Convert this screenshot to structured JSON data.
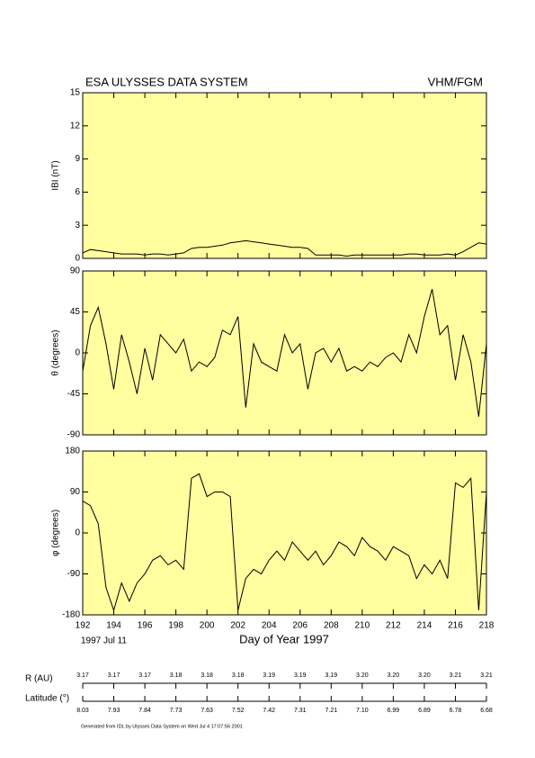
{
  "header": {
    "title": "ESA ULYSSES DATA SYSTEM",
    "instrument": "VHM/FGM"
  },
  "xlabel": "Day of Year 1997",
  "start_date": "1997 Jul 11",
  "chart_data": [
    {
      "type": "line",
      "ylabel": "IBI (nT)",
      "color": "#000000",
      "background": "#ffffa0",
      "xlim": [
        192,
        218
      ],
      "xticks": [
        192,
        194,
        196,
        198,
        200,
        202,
        204,
        206,
        208,
        210,
        212,
        214,
        216,
        218
      ],
      "ylim": [
        0,
        15
      ],
      "yticks": [
        0,
        3,
        6,
        9,
        12,
        15
      ],
      "x": [
        192,
        192.5,
        193,
        193.5,
        194,
        194.5,
        195,
        195.5,
        196,
        196.5,
        197,
        197.5,
        198,
        198.5,
        199,
        199.5,
        200,
        200.5,
        201,
        201.5,
        202,
        202.5,
        203,
        203.5,
        204,
        204.5,
        205,
        205.5,
        206,
        206.5,
        207,
        207.5,
        208,
        208.5,
        209,
        209.5,
        210,
        210.5,
        211,
        211.5,
        212,
        212.5,
        213,
        213.5,
        214,
        214.5,
        215,
        215.5,
        216,
        216.5,
        217,
        217.5,
        218
      ],
      "values": [
        0.5,
        0.8,
        0.7,
        0.6,
        0.5,
        0.4,
        0.4,
        0.4,
        0.3,
        0.4,
        0.4,
        0.3,
        0.4,
        0.5,
        0.9,
        1.0,
        1.0,
        1.1,
        1.2,
        1.4,
        1.5,
        1.6,
        1.5,
        1.4,
        1.3,
        1.2,
        1.1,
        1.0,
        1.0,
        0.9,
        0.3,
        0.3,
        0.3,
        0.3,
        0.2,
        0.3,
        0.3,
        0.3,
        0.3,
        0.3,
        0.3,
        0.3,
        0.4,
        0.4,
        0.3,
        0.3,
        0.3,
        0.4,
        0.3,
        0.6,
        1.0,
        1.4,
        1.3
      ]
    },
    {
      "type": "line",
      "ylabel": "θ (degrees)",
      "color": "#000000",
      "background": "#ffffa0",
      "xlim": [
        192,
        218
      ],
      "xticks": [
        192,
        194,
        196,
        198,
        200,
        202,
        204,
        206,
        208,
        210,
        212,
        214,
        216,
        218
      ],
      "ylim": [
        -90,
        90
      ],
      "yticks": [
        -90,
        -45,
        0,
        45,
        90
      ],
      "x": [
        192,
        192.5,
        193,
        193.5,
        194,
        194.5,
        195,
        195.5,
        196,
        196.5,
        197,
        197.5,
        198,
        198.5,
        199,
        199.5,
        200,
        200.5,
        201,
        201.5,
        202,
        202.5,
        203,
        203.5,
        204,
        204.5,
        205,
        205.5,
        206,
        206.5,
        207,
        207.5,
        208,
        208.5,
        209,
        209.5,
        210,
        210.5,
        211,
        211.5,
        212,
        212.5,
        213,
        213.5,
        214,
        214.5,
        215,
        215.5,
        216,
        216.5,
        217,
        217.5,
        218
      ],
      "values": [
        -20,
        30,
        50,
        10,
        -40,
        20,
        -10,
        -45,
        5,
        -30,
        20,
        10,
        0,
        15,
        -20,
        -10,
        -15,
        -5,
        25,
        20,
        40,
        -60,
        10,
        -10,
        -15,
        -20,
        20,
        0,
        10,
        -40,
        0,
        5,
        -10,
        5,
        -20,
        -15,
        -20,
        -10,
        -15,
        -5,
        0,
        -10,
        20,
        0,
        40,
        70,
        20,
        30,
        -30,
        20,
        -10,
        -70,
        10
      ]
    },
    {
      "type": "line",
      "ylabel": "φ (degrees)",
      "color": "#000000",
      "background": "#ffffa0",
      "xlim": [
        192,
        218
      ],
      "xticks": [
        192,
        194,
        196,
        198,
        200,
        202,
        204,
        206,
        208,
        210,
        212,
        214,
        216,
        218
      ],
      "ylim": [
        -180,
        180
      ],
      "yticks": [
        -180,
        -90,
        0,
        90,
        180
      ],
      "x": [
        192,
        192.5,
        193,
        193.5,
        194,
        194.5,
        195,
        195.5,
        196,
        196.5,
        197,
        197.5,
        198,
        198.5,
        199,
        199.5,
        200,
        200.5,
        201,
        201.5,
        202,
        202.5,
        203,
        203.5,
        204,
        204.5,
        205,
        205.5,
        206,
        206.5,
        207,
        207.5,
        208,
        208.5,
        209,
        209.5,
        210,
        210.5,
        211,
        211.5,
        212,
        212.5,
        213,
        213.5,
        214,
        214.5,
        215,
        215.5,
        216,
        216.5,
        217,
        217.5,
        218
      ],
      "values": [
        70,
        60,
        20,
        -120,
        -170,
        -110,
        -150,
        -110,
        -90,
        -60,
        -50,
        -70,
        -60,
        -80,
        120,
        130,
        80,
        90,
        90,
        80,
        -170,
        -100,
        -80,
        -90,
        -60,
        -40,
        -60,
        -20,
        -40,
        -60,
        -40,
        -70,
        -50,
        -20,
        -30,
        -50,
        -10,
        -30,
        -40,
        -60,
        -30,
        -40,
        -50,
        -100,
        -70,
        -90,
        -60,
        -100,
        110,
        100,
        120,
        -170,
        90
      ]
    }
  ],
  "ephemeris": {
    "r_label": "R (AU)",
    "r_values": [
      "3.17",
      "3.17",
      "3.17",
      "3.18",
      "3.18",
      "3.18",
      "3.19",
      "3.19",
      "3.19",
      "3.20",
      "3.20",
      "3.20",
      "3.21",
      "3.21"
    ],
    "lat_label": "Latitude (°)",
    "lat_values": [
      "8.03",
      "7.93",
      "7.84",
      "7.73",
      "7.63",
      "7.52",
      "7.42",
      "7.31",
      "7.21",
      "7.10",
      "6.99",
      "6.89",
      "6.78",
      "6.68"
    ]
  },
  "footer": "Generated from IDL by Ulysses Data System on Wed Jul  4 17:07:56 2001"
}
